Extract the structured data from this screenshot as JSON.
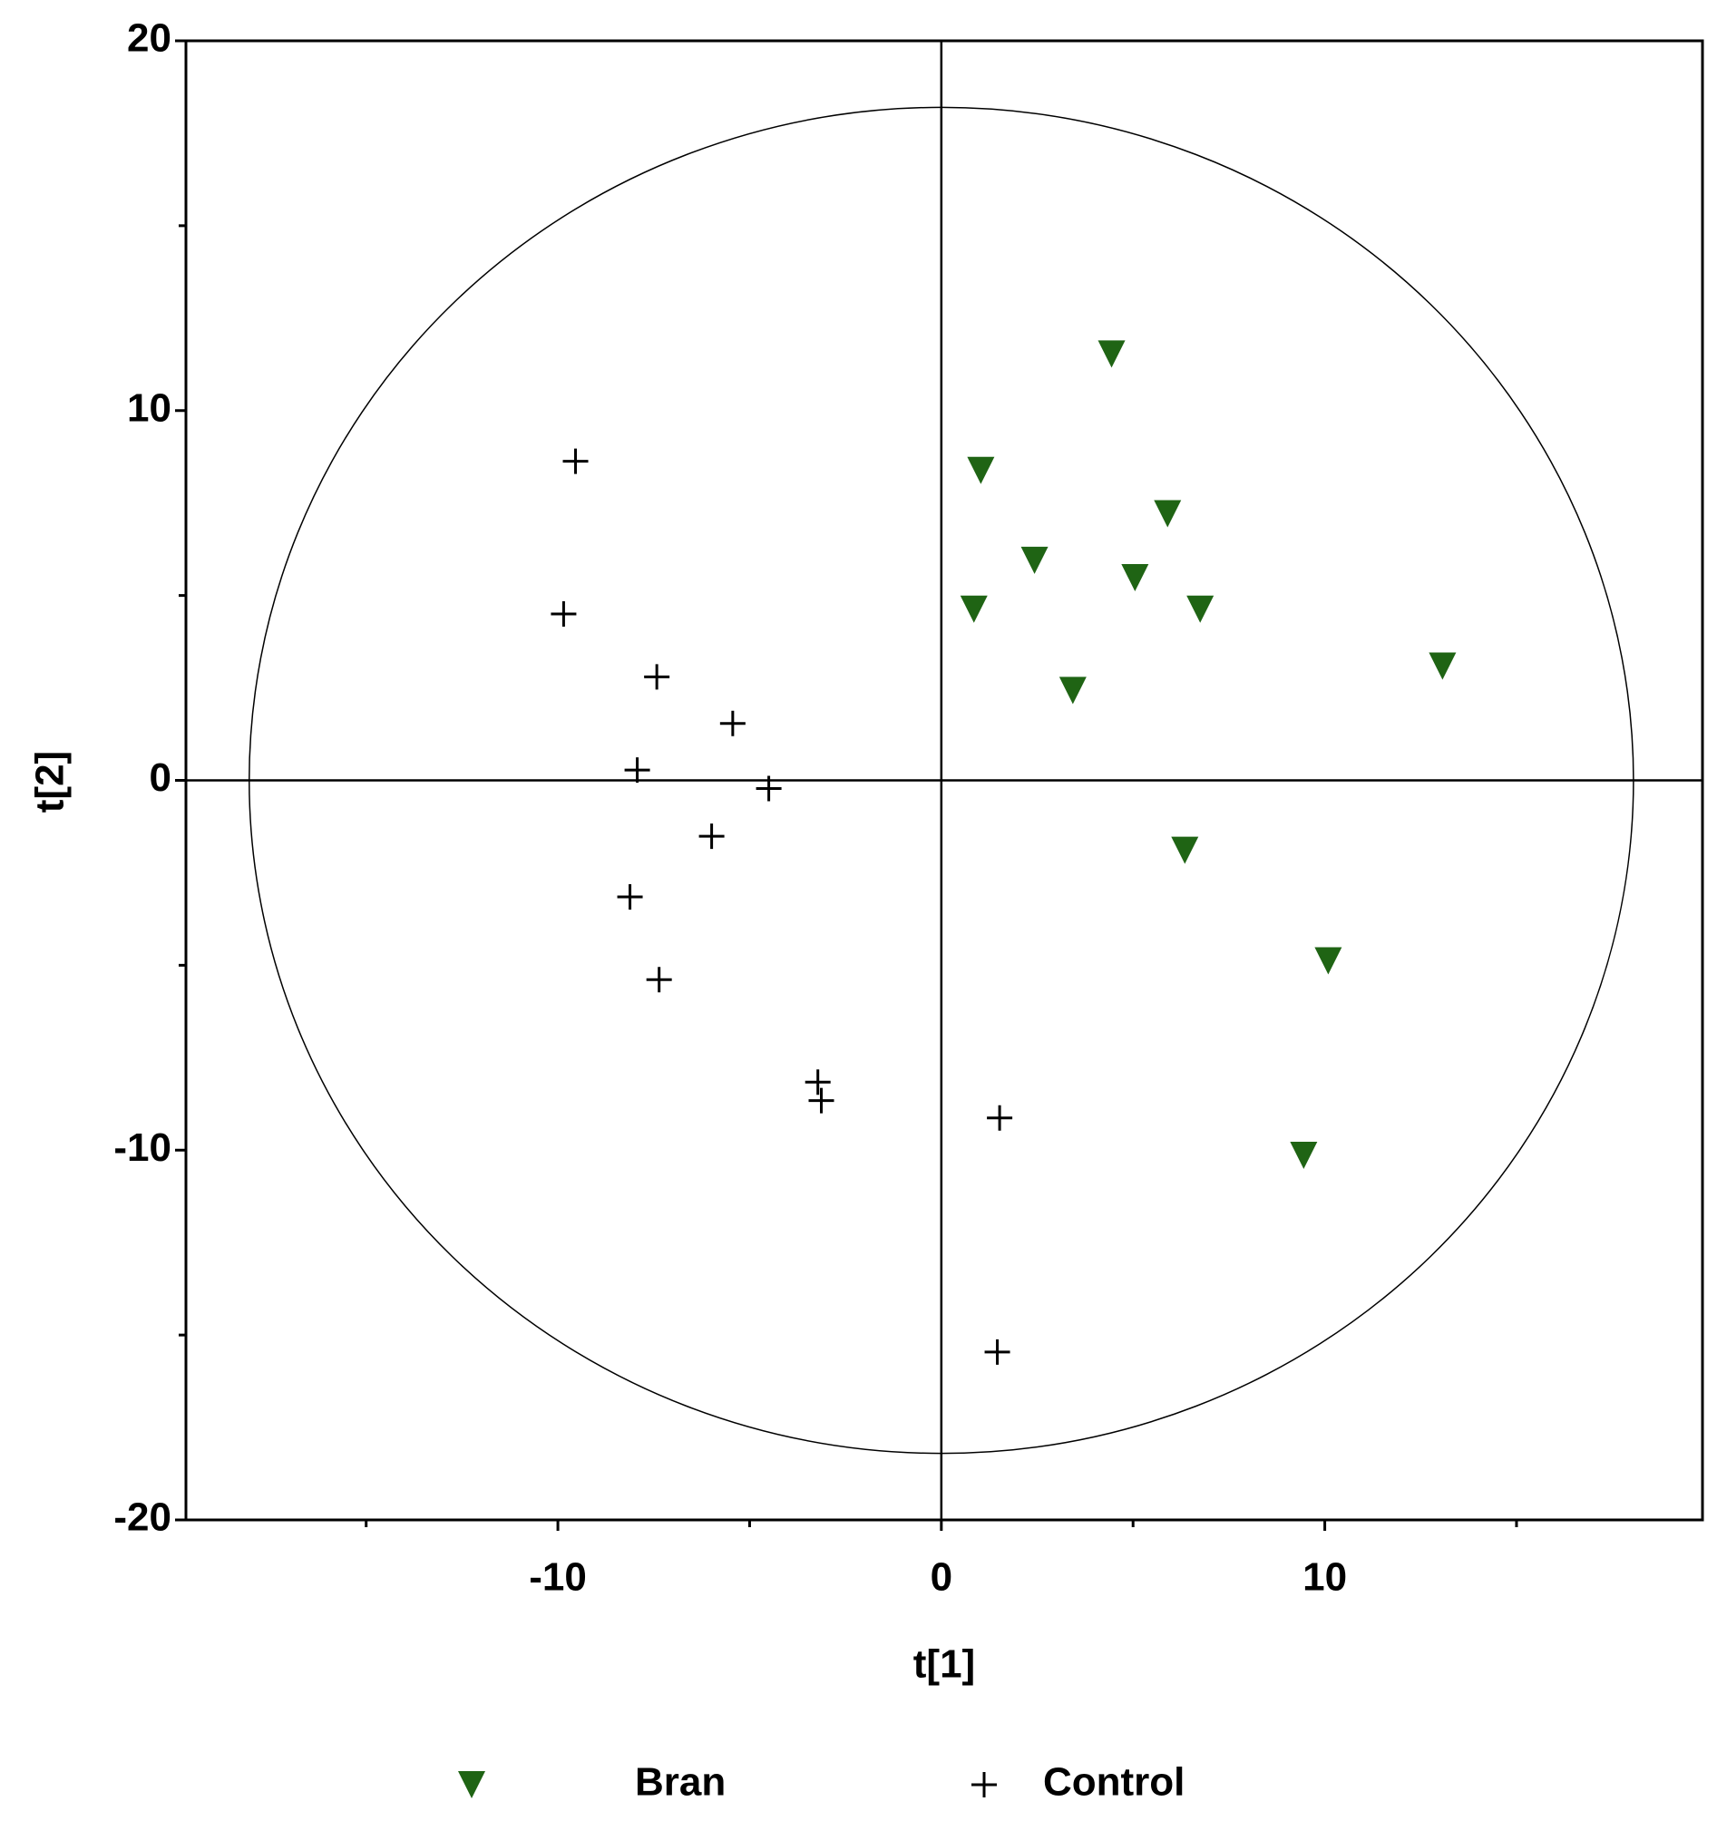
{
  "chart_data": {
    "type": "scatter",
    "x_label": "t[1]",
    "y_label": "t[2]",
    "xlim": [
      -19.7,
      19.85
    ],
    "ylim": [
      -20,
      20
    ],
    "xticks": [
      -10,
      0,
      10
    ],
    "yticks": [
      -20,
      -10,
      0,
      10,
      20
    ],
    "xminor": [
      -15,
      -5,
      5,
      15
    ],
    "yminor": [
      -15,
      -5,
      5,
      15
    ],
    "ellipse": {
      "rx": 18.05,
      "ry": 18.2
    },
    "series": [
      {
        "name": "Bran",
        "color": "#1f6414",
        "marker": "triangle-down",
        "x": [
          4.44,
          1.03,
          5.9,
          2.43,
          5.05,
          0.85,
          6.75,
          13.07,
          3.43,
          6.35,
          10.09,
          9.45
        ],
        "y": [
          11.53,
          8.38,
          7.21,
          5.95,
          5.48,
          4.63,
          4.63,
          3.09,
          2.43,
          -1.89,
          -4.88,
          -10.14
        ]
      },
      {
        "name": "Control",
        "color": "#000000",
        "marker": "plus",
        "x": [
          -9.54,
          -9.85,
          -7.42,
          -5.44,
          -7.93,
          -4.5,
          -5.99,
          -8.12,
          -7.36,
          -3.22,
          -3.13,
          1.52,
          1.46
        ],
        "y": [
          8.63,
          4.5,
          2.8,
          1.54,
          0.28,
          -0.22,
          -1.51,
          -3.15,
          -5.39,
          -8.16,
          -8.66,
          -9.13,
          -15.46
        ]
      }
    ]
  }
}
